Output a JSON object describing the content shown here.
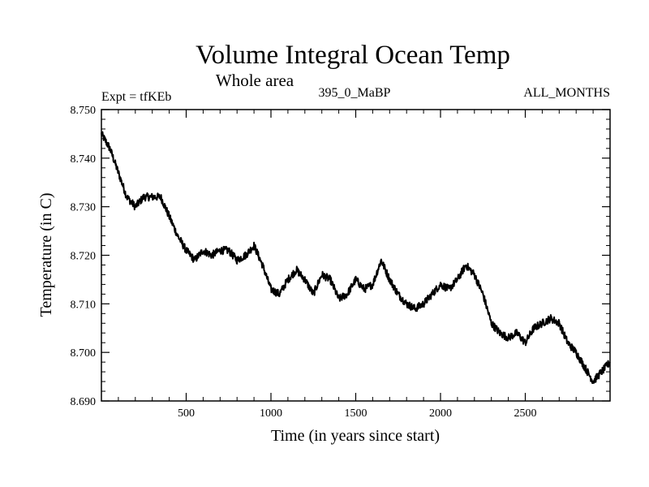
{
  "chart_data": {
    "type": "line",
    "title": "Volume Integral Ocean Temp",
    "subtitle": "Whole area",
    "annotations": {
      "left": "Expt = tfKEb",
      "center": "395_0_MaBP",
      "right": "ALL_MONTHS"
    },
    "xlabel": "Time (in years since start)",
    "ylabel": "Temperature (in C)",
    "xlim": [
      0,
      3000
    ],
    "ylim": [
      8.69,
      8.75
    ],
    "x_ticks": [
      "500",
      "1000",
      "1500",
      "2000",
      "2500"
    ],
    "y_ticks": [
      "8.690",
      "8.700",
      "8.710",
      "8.720",
      "8.730",
      "8.740",
      "8.750"
    ],
    "grid": false,
    "line_color": "#000000",
    "series": [
      {
        "x": [
          0,
          50,
          100,
          150,
          200,
          250,
          300,
          350,
          400,
          450,
          500,
          550,
          600,
          650,
          700,
          750,
          800,
          850,
          900,
          950,
          1000,
          1050,
          1100,
          1150,
          1200,
          1250,
          1300,
          1350,
          1400,
          1450,
          1500,
          1550,
          1600,
          1650,
          1700,
          1750,
          1800,
          1850,
          1900,
          1950,
          2000,
          2050,
          2100,
          2150,
          2200,
          2250,
          2300,
          2350,
          2400,
          2450,
          2500,
          2550,
          2600,
          2650,
          2700,
          2750,
          2800,
          2850,
          2900,
          2950,
          3000
        ],
        "values": [
          8.745,
          8.742,
          8.737,
          8.732,
          8.73,
          8.732,
          8.732,
          8.732,
          8.728,
          8.724,
          8.721,
          8.719,
          8.721,
          8.72,
          8.721,
          8.721,
          8.719,
          8.72,
          8.722,
          8.718,
          8.713,
          8.712,
          8.715,
          8.717,
          8.715,
          8.712,
          8.716,
          8.715,
          8.711,
          8.712,
          8.715,
          8.713,
          8.714,
          8.719,
          8.715,
          8.712,
          8.71,
          8.709,
          8.71,
          8.712,
          8.714,
          8.713,
          8.715,
          8.718,
          8.716,
          8.712,
          8.706,
          8.704,
          8.703,
          8.704,
          8.702,
          8.705,
          8.706,
          8.707,
          8.706,
          8.702,
          8.7,
          8.697,
          8.694,
          8.696,
          8.698
        ]
      }
    ]
  }
}
